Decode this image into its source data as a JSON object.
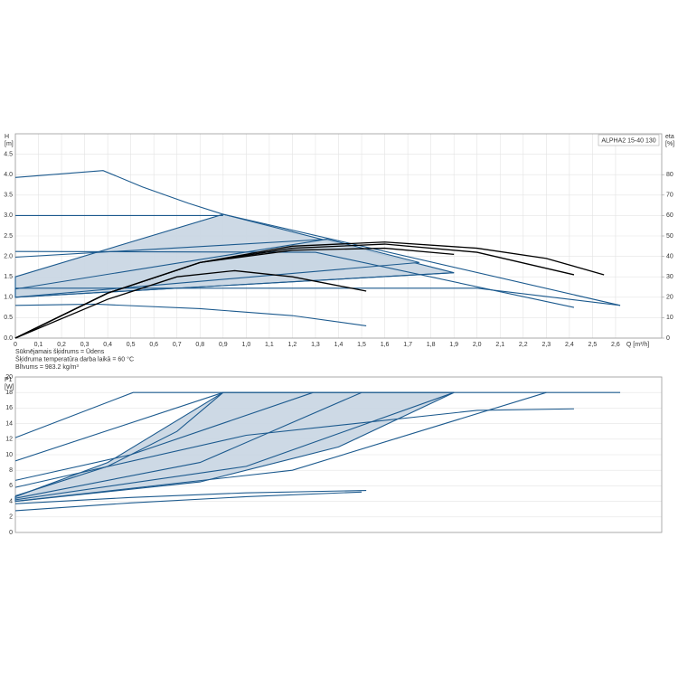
{
  "chart_data": [
    {
      "type": "line",
      "legend_title": "ALPHA2 15-40 130",
      "ylabel": "H",
      "yunit": "[m]",
      "y2label": "eta",
      "y2unit": "[%]",
      "xlabel": "Q [m³/h]",
      "xlim": [
        0,
        2.8
      ],
      "ylim": [
        0,
        5.0
      ],
      "y2lim": [
        0,
        100
      ],
      "grid": true,
      "xticks": [
        0,
        {
          "value": 0.1,
          "label": "0,1"
        },
        {
          "value": 0.2,
          "label": "0,2"
        },
        {
          "value": 0.3,
          "label": "0,3"
        },
        {
          "value": 0.4,
          "label": "0,4"
        },
        {
          "value": 0.5,
          "label": "0,5"
        },
        {
          "value": 0.6,
          "label": "0,6"
        },
        {
          "value": 0.7,
          "label": "0,7"
        },
        {
          "value": 0.8,
          "label": "0,8"
        },
        {
          "value": 0.9,
          "label": "0,9"
        },
        {
          "value": 1.0,
          "label": "1,0"
        },
        {
          "value": 1.1,
          "label": "1,1"
        },
        {
          "value": 1.2,
          "label": "1,2"
        },
        {
          "value": 1.3,
          "label": "1,3"
        },
        {
          "value": 1.4,
          "label": "1,4"
        },
        {
          "value": 1.5,
          "label": "1,5"
        },
        {
          "value": 1.6,
          "label": "1,6"
        },
        {
          "value": 1.7,
          "label": "1,7"
        },
        {
          "value": 1.8,
          "label": "1,8"
        },
        {
          "value": 1.9,
          "label": "1,9"
        },
        {
          "value": 2.0,
          "label": "2,0"
        },
        {
          "value": 2.1,
          "label": "2,1"
        },
        {
          "value": 2.2,
          "label": "2,2"
        },
        {
          "value": 2.3,
          "label": "2,3"
        },
        {
          "value": 2.4,
          "label": "2,4"
        },
        {
          "value": 2.5,
          "label": "2,5"
        },
        {
          "value": 2.6,
          "label": "2,6"
        }
      ],
      "yticks": [
        {
          "value": 0,
          "label": "0.0"
        },
        0.5,
        {
          "value": 1,
          "label": "1.0"
        },
        1.5,
        {
          "value": 2,
          "label": "2.0"
        },
        2.5,
        {
          "value": 3,
          "label": "3.0"
        },
        3.5,
        {
          "value": 4,
          "label": "4.0"
        },
        4.5
      ],
      "y2ticks": [
        0,
        10,
        20,
        30,
        40,
        50,
        60,
        70,
        80
      ],
      "notes": [
        "Sūknējamais šķidrums = Ūdens",
        "Šķidruma temperatūra darba laikā = 60 °C",
        "Blīvums = 983.2 kg/m³"
      ],
      "series": [
        {
          "color": "#1c5a8e",
          "fill": "#c8d5e2",
          "x": [
            0,
            0.9,
            1.9,
            0
          ],
          "values": [
            1.5,
            3.03,
            1.6,
            1.0
          ]
        },
        {
          "color": "#1c5a8e",
          "fill": "#c8d5e2",
          "x": [
            0,
            1.35,
            1.75,
            0
          ],
          "values": [
            1.2,
            2.42,
            1.85,
            1.0
          ]
        },
        {
          "color": "#1c5a8e",
          "x": [
            0,
            0.38,
            0.55,
            0.75,
            0.9
          ],
          "values": [
            3.93,
            4.1,
            3.7,
            3.3,
            3.03
          ]
        },
        {
          "color": "#1c5a8e",
          "x": [
            0.9,
            2.62
          ],
          "values": [
            3.03,
            0.8
          ]
        },
        {
          "color": "#1c5a8e",
          "x": [
            0,
            0.9
          ],
          "values": [
            3.0,
            3.0
          ]
        },
        {
          "color": "#1c5a8e",
          "x": [
            0,
            1.3,
            2.42
          ],
          "values": [
            2.12,
            2.1,
            0.75
          ]
        },
        {
          "color": "#1c5a8e",
          "x": [
            0,
            2.0,
            2.62
          ],
          "values": [
            1.22,
            1.22,
            0.8
          ]
        },
        {
          "color": "#1c5a8e",
          "x": [
            0,
            1.9
          ],
          "values": [
            1.0,
            1.6
          ]
        },
        {
          "color": "#1c5a8e",
          "x": [
            0,
            1.35
          ],
          "values": [
            1.98,
            2.42
          ]
        },
        {
          "color": "#1c5a8e",
          "x": [
            0,
            0.35,
            0.8,
            1.2,
            1.52
          ],
          "values": [
            0.8,
            0.83,
            0.72,
            0.55,
            0.3
          ]
        },
        {
          "color": "#000000",
          "axis": "y2",
          "x": [
            0,
            0.4,
            0.8,
            1.2,
            1.6,
            2.0,
            2.3,
            2.55
          ],
          "values": [
            0,
            22,
            37,
            45,
            47,
            44,
            39,
            31
          ]
        },
        {
          "color": "#000000",
          "axis": "y2",
          "x": [
            0,
            0.4,
            0.8,
            1.2,
            1.6,
            2.0,
            2.42
          ],
          "values": [
            0,
            22,
            37,
            44,
            46,
            42,
            31
          ]
        },
        {
          "color": "#000000",
          "axis": "y2",
          "x": [
            0,
            0.4,
            0.8,
            1.2,
            1.6,
            1.9
          ],
          "values": [
            0,
            22,
            37,
            43,
            44,
            41
          ]
        },
        {
          "color": "#000000",
          "axis": "y2",
          "x": [
            0,
            0.4,
            0.7,
            0.95,
            1.2,
            1.52
          ],
          "values": [
            0,
            19,
            30,
            33,
            30,
            23
          ]
        }
      ]
    },
    {
      "type": "line",
      "ylabel": "P1",
      "yunit": "[W]",
      "xlim": [
        0,
        2.8
      ],
      "ylim": [
        0,
        20
      ],
      "grid": true,
      "yticks": [
        0,
        2,
        4,
        6,
        8,
        10,
        12,
        14,
        16,
        18,
        20
      ],
      "series": [
        {
          "color": "#1c5a8e",
          "fill": "#c8d5e2",
          "x": [
            0,
            0.4,
            0.9,
            1.9,
            1.4,
            0.8,
            0
          ],
          "values": [
            4.6,
            9,
            18,
            18,
            11,
            6.5,
            4.0
          ]
        },
        {
          "color": "#1c5a8e",
          "x": [
            0,
            0.51,
            2.62
          ],
          "values": [
            12.2,
            18,
            18
          ]
        },
        {
          "color": "#1c5a8e",
          "x": [
            0,
            0.9
          ],
          "values": [
            9.2,
            18
          ]
        },
        {
          "color": "#1c5a8e",
          "x": [
            0,
            0.4,
            0.7,
            0.9
          ],
          "values": [
            4.7,
            8.5,
            13,
            18
          ]
        },
        {
          "color": "#1c5a8e",
          "x": [
            0,
            0.5,
            1.29
          ],
          "values": [
            6.7,
            10,
            18
          ]
        },
        {
          "color": "#1c5a8e",
          "x": [
            0,
            0.8,
            1.5
          ],
          "values": [
            4.4,
            9,
            18
          ]
        },
        {
          "color": "#1c5a8e",
          "x": [
            0,
            1.0,
            1.9
          ],
          "values": [
            4.2,
            8.5,
            18
          ]
        },
        {
          "color": "#1c5a8e",
          "x": [
            0,
            1.2,
            2.3
          ],
          "values": [
            4.0,
            8,
            18
          ]
        },
        {
          "color": "#1c5a8e",
          "x": [
            0,
            1.0,
            2.0,
            2.42
          ],
          "values": [
            5.8,
            12.5,
            15.7,
            15.9
          ]
        },
        {
          "color": "#1c5a8e",
          "x": [
            0,
            0.5,
            1.0,
            1.52
          ],
          "values": [
            3.7,
            4.5,
            5.1,
            5.4
          ]
        },
        {
          "color": "#1c5a8e",
          "x": [
            0,
            0.5,
            1.0,
            1.5
          ],
          "values": [
            2.8,
            3.8,
            4.6,
            5.2
          ]
        }
      ]
    }
  ]
}
